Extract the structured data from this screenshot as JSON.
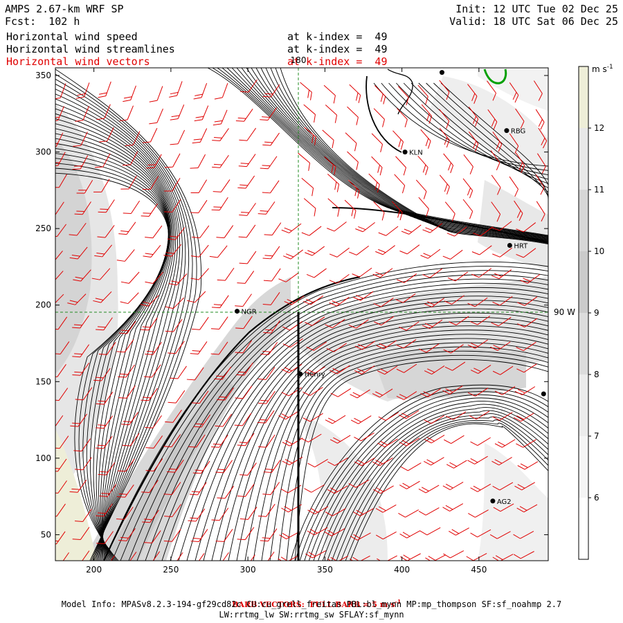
{
  "header": {
    "model": "AMPS 2.67-km WRF SP",
    "forecast": "Fcst:  102 h",
    "init": "Init: 12 UTC Tue 02 Dec 25",
    "valid": "Valid: 18 UTC Sat 06 Dec 25",
    "fields": [
      {
        "name": "Horizontal wind speed",
        "level": "at k-index =  49",
        "color": "#000000"
      },
      {
        "name": "Horizontal wind streamlines",
        "level": "at k-index =  49",
        "color": "#000000"
      },
      {
        "name": "Horizontal wind vectors",
        "level": "at k-index =  49",
        "color": "#e00000"
      }
    ]
  },
  "map": {
    "x_ticks": [
      200,
      250,
      300,
      350,
      400,
      450
    ],
    "y_ticks": [
      50,
      100,
      150,
      200,
      250,
      300,
      350
    ],
    "x_range": [
      175,
      495
    ],
    "y_range": [
      33,
      355
    ],
    "meridian_label": "180",
    "longitude_label": "90 W",
    "grid_color": "#228b22",
    "barb_color": "#e00000",
    "stations": [
      {
        "name": "",
        "x": 426,
        "y": 352
      },
      {
        "name": "RBG",
        "x": 468,
        "y": 314
      },
      {
        "name": "KLN",
        "x": 402,
        "y": 300
      },
      {
        "name": "HRT",
        "x": 470,
        "y": 239
      },
      {
        "name": "NGR",
        "x": 293,
        "y": 196
      },
      {
        "name": "Henry",
        "x": 334,
        "y": 155
      },
      {
        "name": "",
        "x": 492,
        "y": 142
      },
      {
        "name": "AG2",
        "x": 459,
        "y": 72
      }
    ]
  },
  "colorbar": {
    "unit": "m s",
    "unit_exp": "-1",
    "labels": [
      "12",
      "11",
      "10",
      "9",
      "8",
      "7",
      "6"
    ],
    "colors": [
      "#eeeed8",
      "#e8e8e8",
      "#d7d7d7",
      "#cbcbcb",
      "#dcdcdc",
      "#ececec",
      "#f5f5f5",
      "#ffffff"
    ]
  },
  "footer": {
    "barb_note": "BARB VECTORS:  FULL BARB = 5 m s",
    "barb_exp": "-1",
    "model_info_1": "Model Info: MPASv8.2.3-194-gf29cd82c CU:cu_grell_freitas PBL:bl_mynn MP:mp_thompson SF:sf_noahmp 2.7",
    "model_info_2": "LW:rrtmg_lw SW:rrtmg_sw SFLAY:sf_mynn"
  }
}
